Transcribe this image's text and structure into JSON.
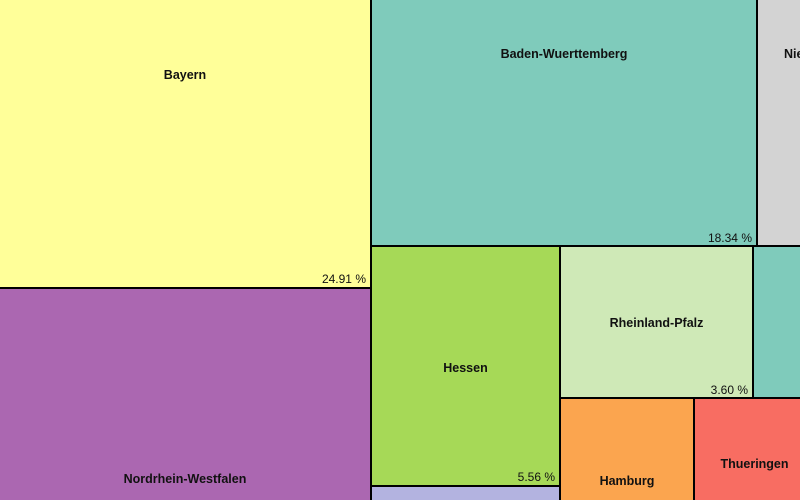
{
  "chart_data": {
    "type": "treemap",
    "tiles": [
      {
        "label": "Bayern",
        "percent_label": "24.91 %",
        "value": 24.91,
        "color": "#ffff99"
      },
      {
        "label": "Baden-Wuerttemberg",
        "percent_label": "18.34 %",
        "value": 18.34,
        "color": "#7fcbbb"
      },
      {
        "label": "Nie",
        "percent_label": "",
        "color": "#d3d3d3"
      },
      {
        "label": "Nordrhein-Westfalen",
        "percent_label": "",
        "color": "#ab67b1"
      },
      {
        "label": "Hessen",
        "percent_label": "5.56 %",
        "value": 5.56,
        "color": "#a6d957"
      },
      {
        "label": "Rheinland-Pfalz",
        "percent_label": "3.60 %",
        "value": 3.6,
        "color": "#cfe9b7"
      },
      {
        "label": "",
        "percent_label": "",
        "color": "#7fcbbb"
      },
      {
        "label": "Hamburg",
        "percent_label": "",
        "color": "#fba54f"
      },
      {
        "label": "Thueringen",
        "percent_label": "",
        "color": "#f86d62"
      },
      {
        "label": "",
        "percent_label": "",
        "color": "#b3b3e0"
      }
    ]
  }
}
